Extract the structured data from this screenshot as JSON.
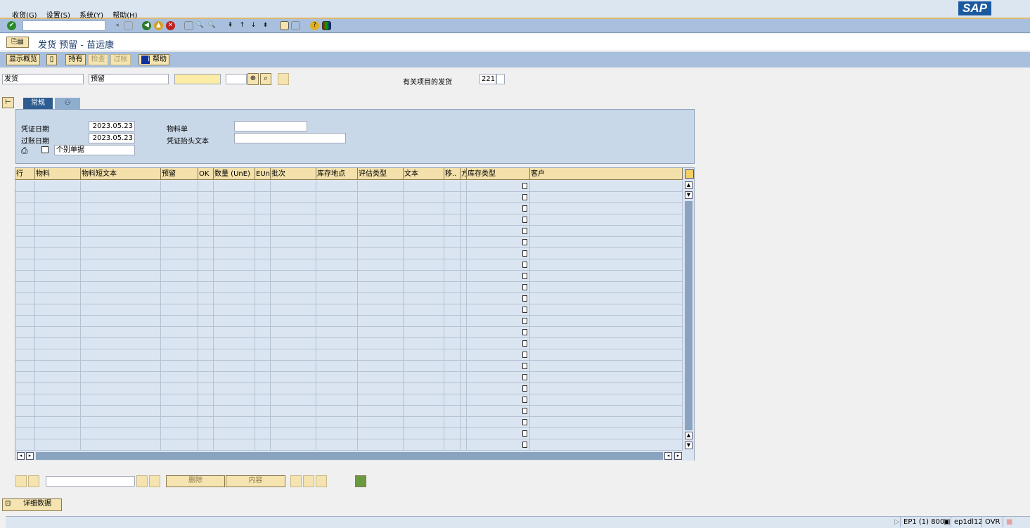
{
  "menu": [
    "收货(G)",
    "设置(S)",
    "系统(Y)",
    "帮助(H)"
  ],
  "logo": "SAP",
  "command_field": "",
  "title": "发货 预留 - 苗运康",
  "app_toolbar": {
    "overview": "显示概览",
    "hold": "持有",
    "check": "检查",
    "post": "过帐",
    "help": "帮助"
  },
  "selection": {
    "transaction": "发货",
    "reference": "预留",
    "ref_value": "",
    "ref_extra": "",
    "related_label": "有关项目的发货",
    "movement_type": "221"
  },
  "tabs": [
    "常规"
  ],
  "header": {
    "doc_date_label": "凭证日期",
    "doc_date": "2023.05.23",
    "post_date_label": "过账日期",
    "post_date": "2023.05.23",
    "material_slip_label": "物料单",
    "material_slip": "",
    "header_text_label": "凭证抬头文本",
    "header_text": "",
    "print_option": "个别单据"
  },
  "grid": {
    "columns": [
      "行",
      "物料",
      "物料短文本",
      "预留",
      "OK",
      "数量 (UnE)",
      "EUn",
      "批次",
      "库存地点",
      "评估类型",
      "文本",
      "移..",
      "方",
      "库存类型",
      "客户"
    ],
    "row_count": 24
  },
  "bottom": {
    "search": "",
    "delete": "删除",
    "contents": "内容",
    "details": "详细数据"
  },
  "statusbar": {
    "system": "EP1 (1) 800",
    "server": "ep1dl12",
    "mode": "OVR"
  }
}
